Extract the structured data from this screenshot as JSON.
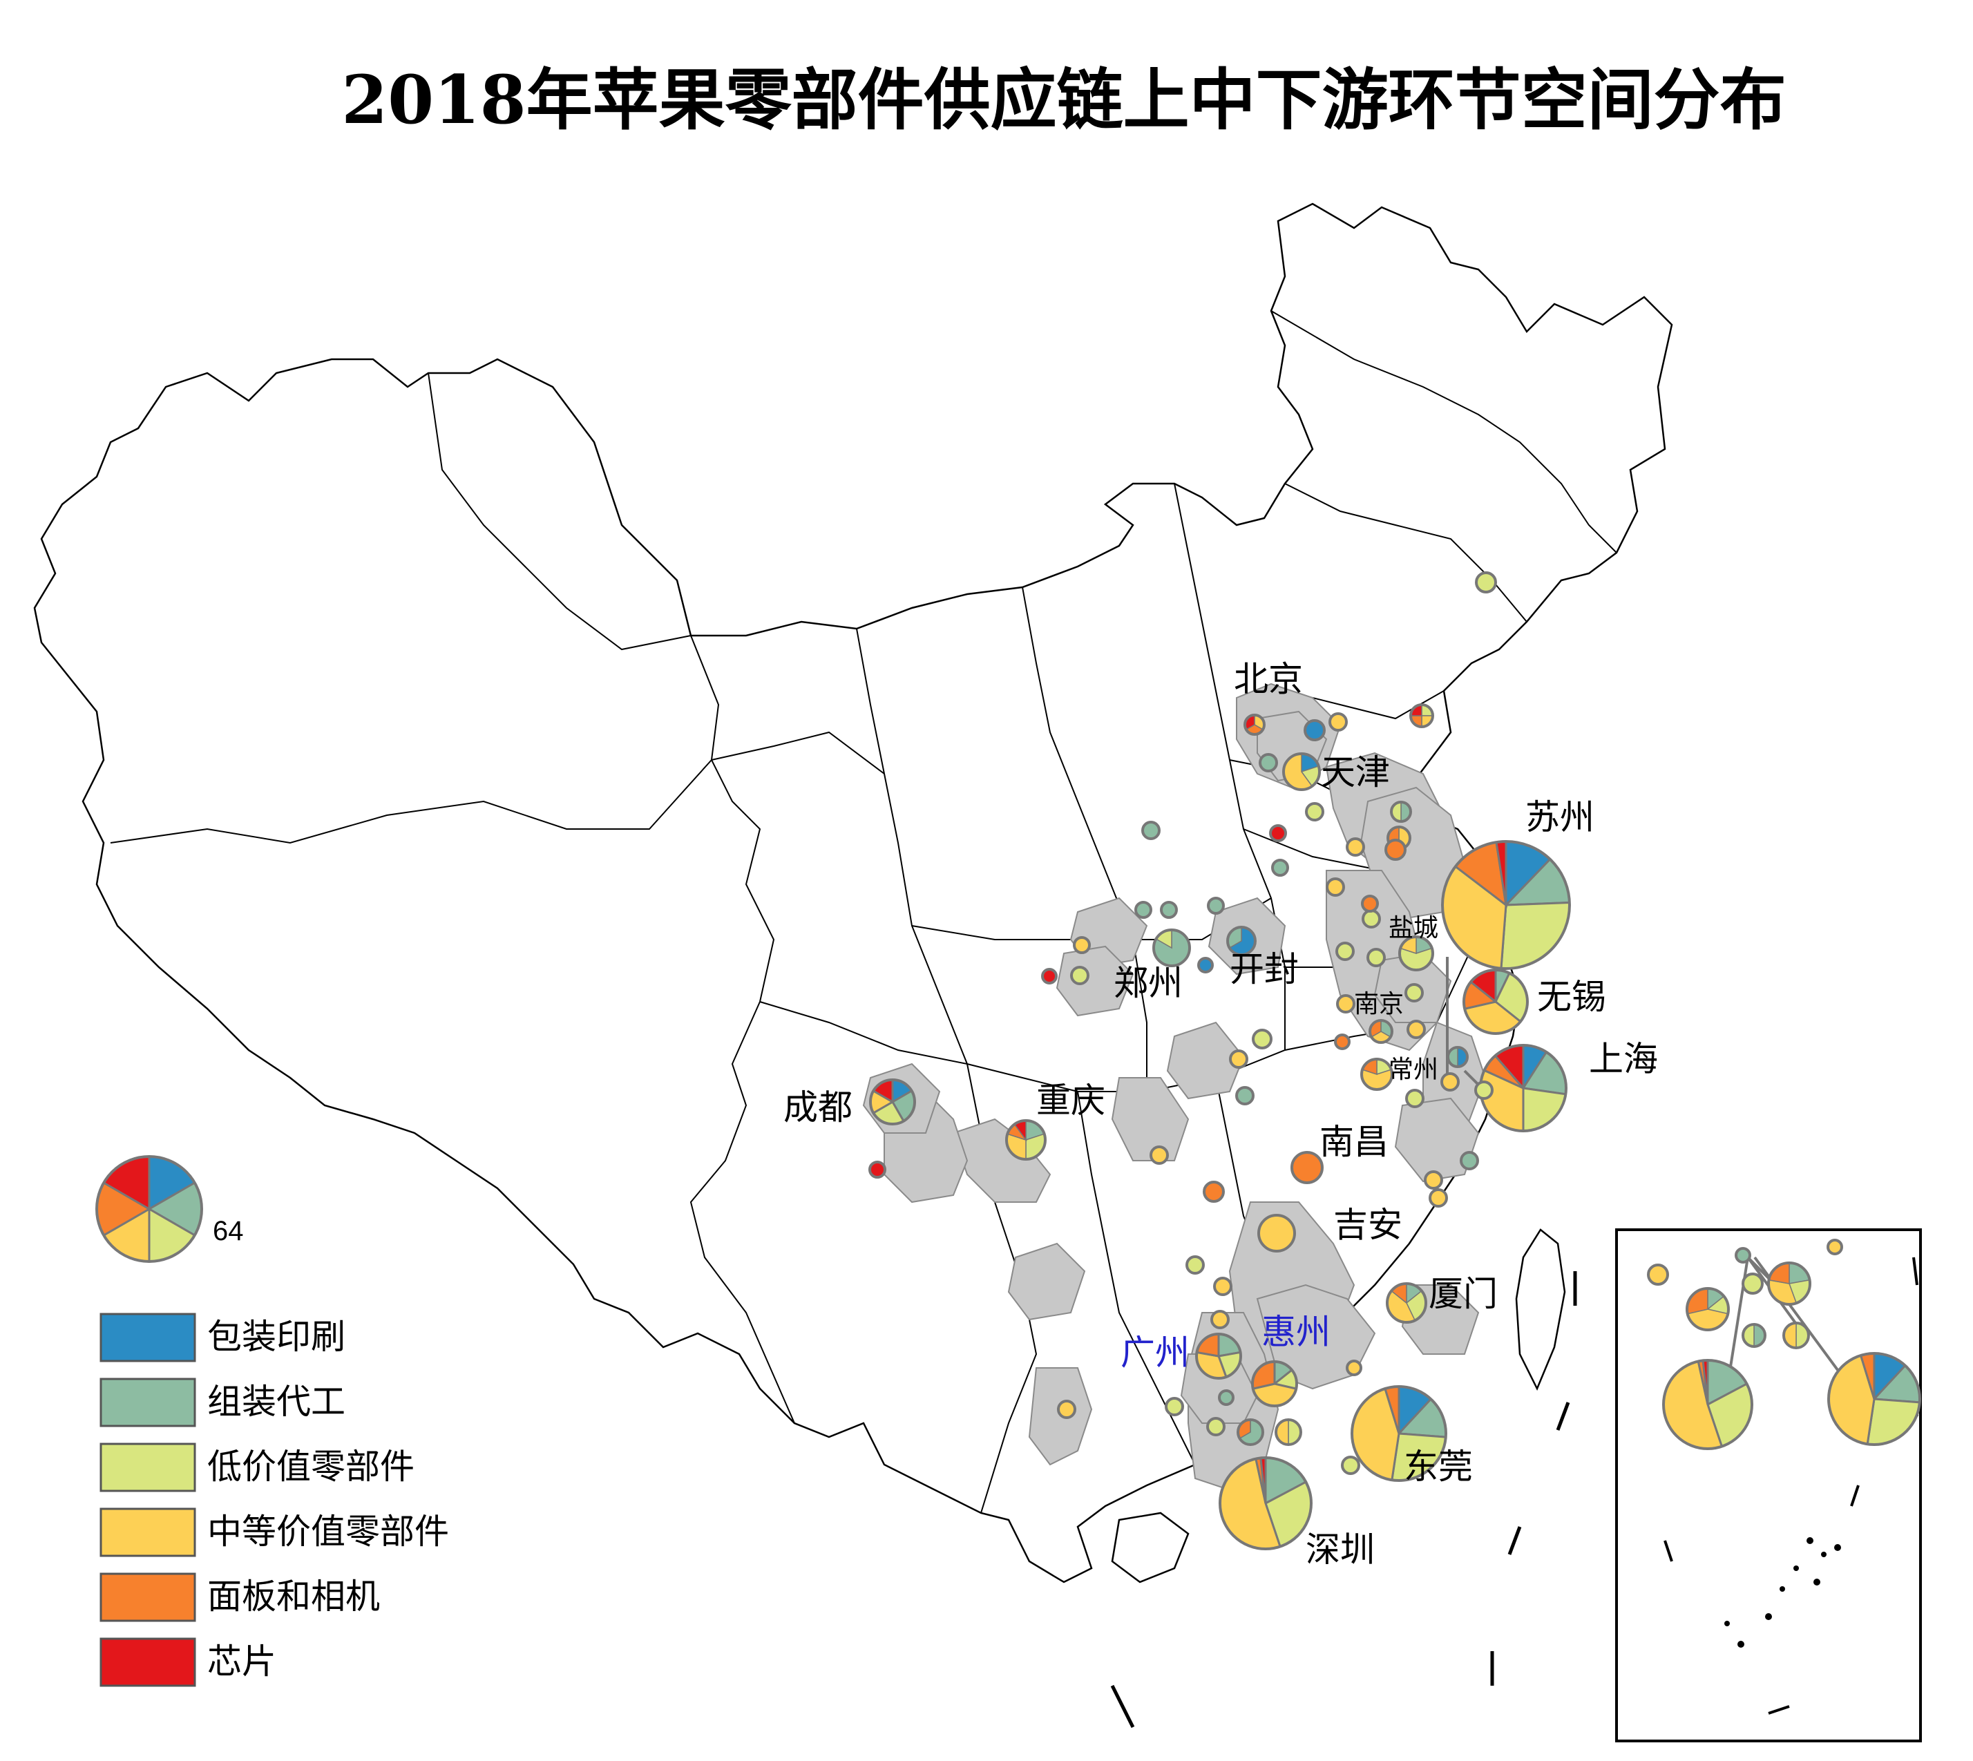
{
  "title": "2018年苹果零部件供应链上中下游环节空间分布",
  "colors": {
    "packaging": "#2b8cc4",
    "assembly": "#8dbca2",
    "low_value": "#d9e67f",
    "mid_value": "#fdd055",
    "panel_camera": "#f7812d",
    "chip": "#e3171b"
  },
  "legend": {
    "scale_value": "64",
    "items": [
      {
        "key": "packaging",
        "label": "包装印刷"
      },
      {
        "key": "assembly",
        "label": "组装代工"
      },
      {
        "key": "low_value",
        "label": "低价值零部件"
      },
      {
        "key": "mid_value",
        "label": "中等价值零部件"
      },
      {
        "key": "panel_camera",
        "label": "面板和相机"
      },
      {
        "key": "chip",
        "label": "芯片"
      }
    ]
  },
  "cities": [
    {
      "label": "苏州"
    },
    {
      "label": "上海"
    },
    {
      "label": "无锡"
    },
    {
      "label": "盐城"
    },
    {
      "label": "南京"
    },
    {
      "label": "常州"
    },
    {
      "label": "北京"
    },
    {
      "label": "天津"
    },
    {
      "label": "郑州"
    },
    {
      "label": "开封"
    },
    {
      "label": "成都"
    },
    {
      "label": "重庆"
    },
    {
      "label": "南昌"
    },
    {
      "label": "吉安"
    },
    {
      "label": "厦门"
    },
    {
      "label": "广州"
    },
    {
      "label": "惠州"
    },
    {
      "label": "东莞"
    },
    {
      "label": "深圳"
    }
  ]
}
